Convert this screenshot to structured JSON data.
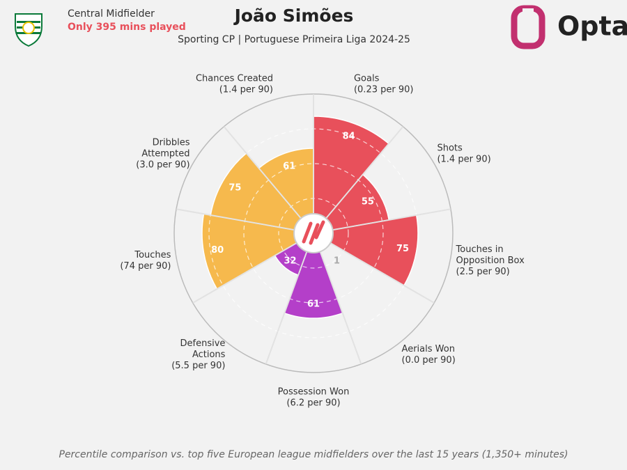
{
  "header": {
    "position": "Central Midfielder",
    "note": "Only 395 mins played",
    "brand": "Opta"
  },
  "chart_data": {
    "type": "pizza",
    "title": "João Simões",
    "subtitle": "Sporting CP | Portuguese Primeira Liga 2024-25",
    "categories": [
      [
        "Goals"
      ],
      [
        "Shots"
      ],
      [
        "Touches in",
        "Opposition Box"
      ],
      [
        "Aerials Won"
      ],
      [
        "Possession Won"
      ],
      [
        "Defensive",
        "Actions"
      ],
      [
        "Touches"
      ],
      [
        "Dribbles",
        "Attempted"
      ],
      [
        "Chances Created"
      ]
    ],
    "per90": [
      "(0.23 per 90)",
      "(1.4 per 90)",
      "(2.5 per 90)",
      "(0.0 per 90)",
      "(6.2 per 90)",
      "(5.5 per 90)",
      "(74 per 90)",
      "(3.0 per 90)",
      "(1.4 per 90)"
    ],
    "values": [
      84,
      55,
      75,
      1,
      61,
      32,
      80,
      75,
      61
    ],
    "colors": [
      "#e8505b",
      "#e8505b",
      "#e8505b",
      "#b43fc9",
      "#b43fc9",
      "#b43fc9",
      "#f6b94d",
      "#f6b94d",
      "#f6b94d"
    ],
    "rlim": [
      0,
      100
    ],
    "rticks": [
      25,
      50,
      75,
      100
    ],
    "footnote": "Percentile comparison vs. top five European league midfielders over the last 15 years (1,350+ minutes)"
  }
}
